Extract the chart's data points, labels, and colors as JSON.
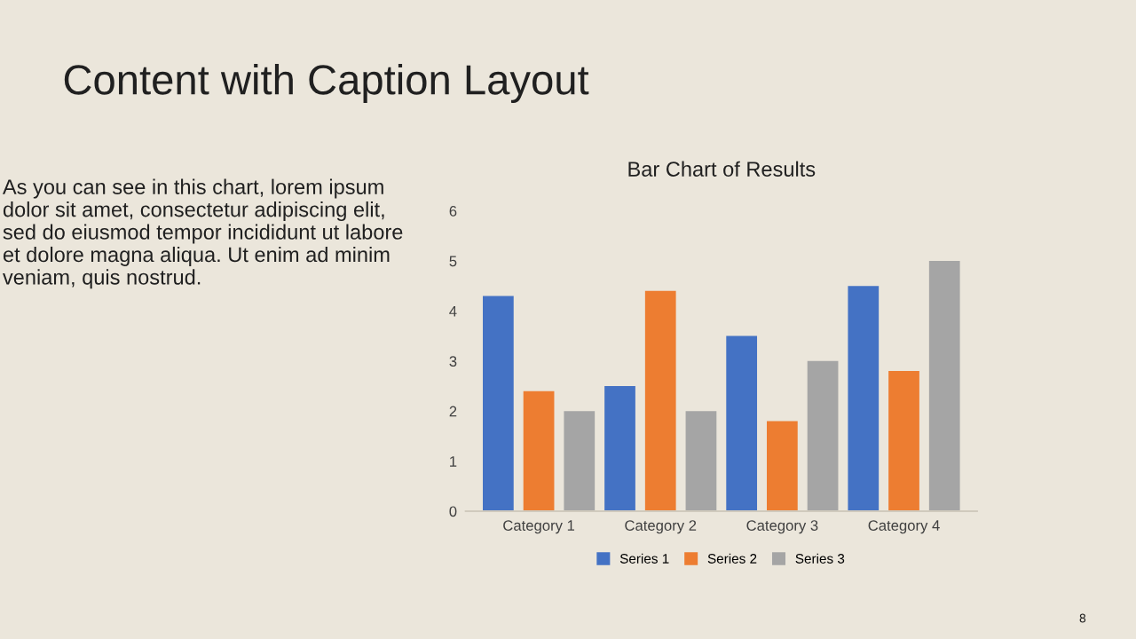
{
  "chart_data": {
    "type": "bar",
    "title": "Bar Chart of Results",
    "categories": [
      "Category 1",
      "Category 2",
      "Category 3",
      "Category 4"
    ],
    "series": [
      {
        "name": "Series 1",
        "color": "#4472c4",
        "values": [
          4.3,
          2.5,
          3.5,
          4.5
        ]
      },
      {
        "name": "Series 2",
        "color": "#ed7d31",
        "values": [
          2.4,
          4.4,
          1.8,
          2.8
        ]
      },
      {
        "name": "Series 3",
        "color": "#a5a5a5",
        "values": [
          2,
          2,
          3,
          5
        ]
      }
    ],
    "ylim": [
      0,
      6
    ],
    "yticks": [
      0,
      1,
      2,
      3,
      4,
      5,
      6
    ],
    "grid": false,
    "legend": "bottom",
    "annotations": [
      "Content with Caption Layout",
      "As you can see in this chart, lorem ipsum dolor sit amet, consectetur adipiscing elit, sed do eiusmod tempor incididunt ut labore et dolore magna aliqua. Ut enim ad minim veniam, quis nostrud.",
      "8"
    ]
  }
}
